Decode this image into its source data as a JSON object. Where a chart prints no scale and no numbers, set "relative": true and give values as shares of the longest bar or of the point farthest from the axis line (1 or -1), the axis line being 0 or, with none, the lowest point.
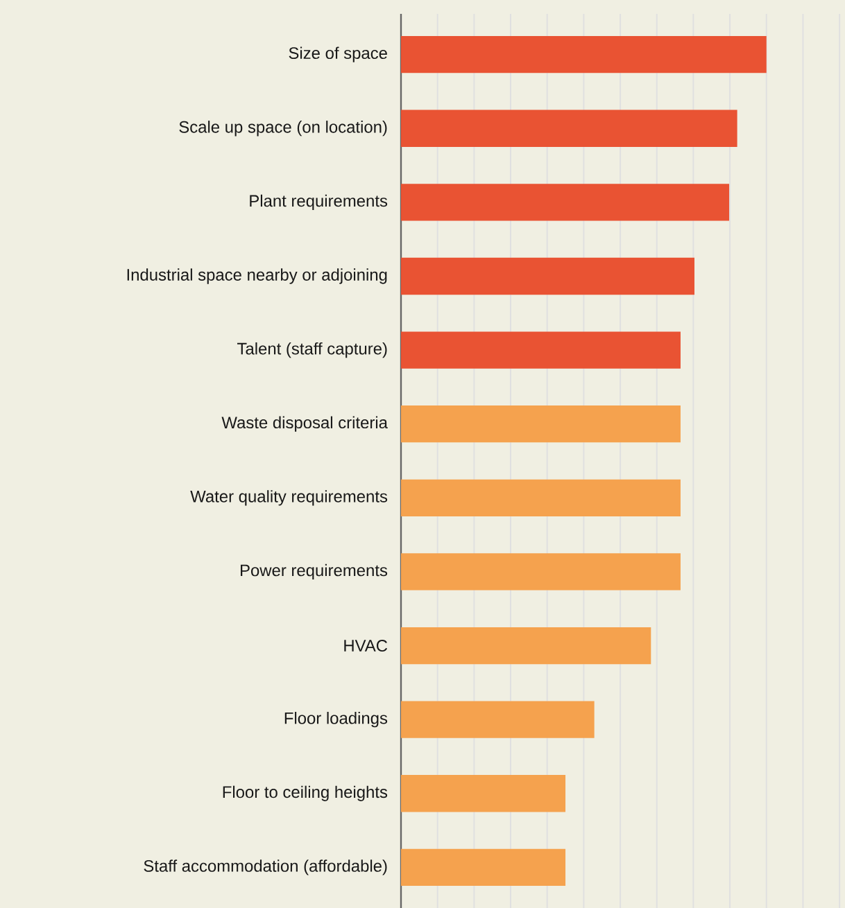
{
  "chart_data": {
    "type": "bar",
    "orientation": "horizontal",
    "relative": true,
    "grid": "x",
    "categories": [
      "Size of space",
      "Scale up space (on location)",
      "Plant requirements",
      "Industrial space nearby or adjoining",
      "Talent (staff capture)",
      "Waste disposal criteria",
      "Water quality requirements",
      "Power requirements",
      "HVAC",
      "Floor loadings",
      "Floor to ceiling heights",
      "Staff accommodation (affordable)"
    ],
    "values": [
      1,
      0.92,
      0.898,
      0.803,
      0.765,
      0.765,
      0.765,
      0.765,
      0.684,
      0.529,
      0.45,
      0.45
    ],
    "colors": [
      "#e95333",
      "#e95333",
      "#e95333",
      "#e95333",
      "#e95333",
      "#f5a24e",
      "#f5a24e",
      "#f5a24e",
      "#f5a24e",
      "#f5a24e",
      "#f5a24e",
      "#f5a24e"
    ]
  }
}
